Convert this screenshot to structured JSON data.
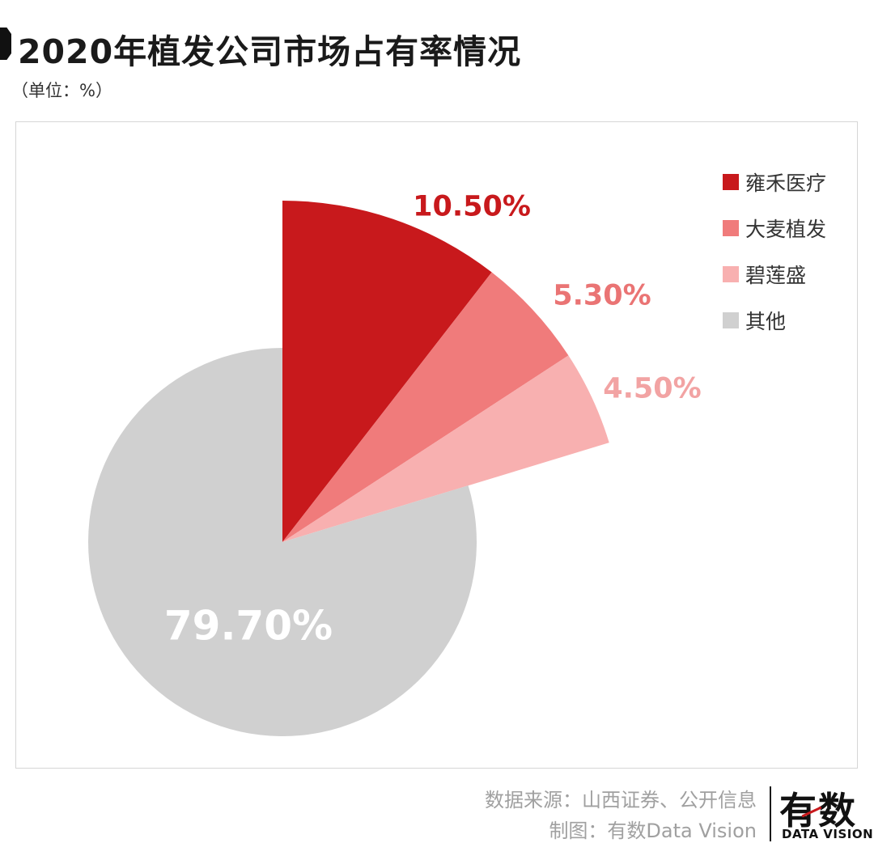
{
  "header": {
    "title": "2020年植发公司市场占有率情况",
    "unit": "（单位：%）"
  },
  "chart_data": {
    "type": "pie",
    "title": "2020年植发公司市场占有率情况",
    "unit": "%",
    "legend_position": "top-right",
    "slices": [
      {
        "name": "雍禾医疗",
        "value": 10.5,
        "label": "10.50%",
        "color": "#c8191c",
        "label_color": "#c8191c"
      },
      {
        "name": "大麦植发",
        "value": 5.3,
        "label": "5.30%",
        "color": "#f07b7b",
        "label_color": "#ea7474"
      },
      {
        "name": "碧莲盛",
        "value": 4.5,
        "label": "4.50%",
        "color": "#f8b0b0",
        "label_color": "#f2a3a3"
      },
      {
        "name": "其他",
        "value": 79.7,
        "label": "79.70%",
        "color": "#d0d0d0",
        "label_color": "#ffffff"
      }
    ]
  },
  "footer": {
    "source": "数据来源：山西证券、公开信息",
    "credit": "制图：有数Data Vision",
    "logo_main": "有数",
    "logo_sub": "DATA VISION"
  }
}
